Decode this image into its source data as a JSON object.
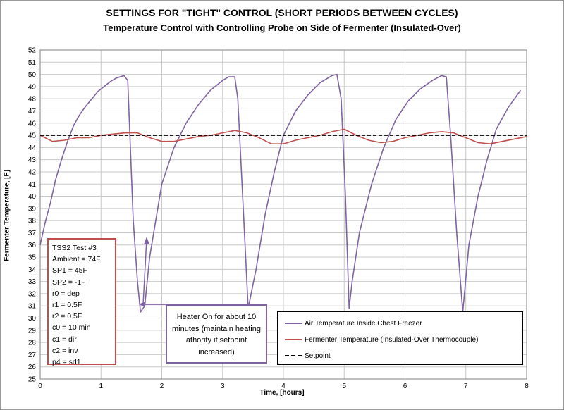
{
  "title": "SETTINGS FOR \"TIGHT\" CONTROL (SHORT PERIODS BETWEEN CYCLES)",
  "subtitle": "Temperature Control with Controlling Probe on Side of Fermenter (Insulated-Over)",
  "colors": {
    "air": "#8064a2",
    "fermenter": "#c0504d",
    "setpoint": "#000000",
    "grid": "#c8c8c8",
    "note_border": "#c0504d",
    "callout_border": "#8064a2"
  },
  "note_box": {
    "heading": "TSS2 Test #3",
    "lines": [
      "Ambient = 74F",
      "SP1 = 45F",
      "SP2 = -1F",
      "r0 = dep",
      "r1 = 0.5F",
      "r2 = 0.5F",
      "c0 = 10 min",
      "c1 = dir",
      "c2 = inv",
      "p4 = sd1"
    ]
  },
  "callout_text": "Heater On for about 10 minutes (maintain heating athority if setpoint increased)",
  "chart_data": {
    "type": "line",
    "title": "SETTINGS FOR \"TIGHT\" CONTROL (SHORT PERIODS BETWEEN CYCLES)",
    "subtitle": "Temperature Control with Controlling Probe on Side of Fermenter (Insulated-Over)",
    "xlabel": "Time, [hours]",
    "ylabel": "Fermenter Temperature, [F]",
    "xlim": [
      0,
      8
    ],
    "ylim": [
      25,
      52
    ],
    "xticks": [
      "0",
      "1",
      "2",
      "3",
      "4",
      "5",
      "6",
      "7",
      "8"
    ],
    "yticks": [
      "25",
      "26",
      "27",
      "28",
      "29",
      "30",
      "31",
      "32",
      "33",
      "34",
      "35",
      "36",
      "37",
      "38",
      "39",
      "40",
      "41",
      "42",
      "43",
      "44",
      "45",
      "46",
      "47",
      "48",
      "49",
      "50",
      "51",
      "52"
    ],
    "grid": true,
    "legend_position": "bottom-right",
    "series": [
      {
        "name": "Air Temperature Inside Chest Freezer",
        "color": "#8064a2",
        "x": [
          0.0,
          0.08,
          0.17,
          0.25,
          0.35,
          0.45,
          0.55,
          0.65,
          0.75,
          0.85,
          0.95,
          1.05,
          1.15,
          1.25,
          1.38,
          1.44,
          1.53,
          1.6,
          1.65,
          1.72,
          1.8,
          1.9,
          2.0,
          2.2,
          2.4,
          2.6,
          2.8,
          3.0,
          3.1,
          3.2,
          3.25,
          3.35,
          3.42,
          3.55,
          3.7,
          3.85,
          4.0,
          4.2,
          4.4,
          4.6,
          4.8,
          4.88,
          4.95,
          5.02,
          5.08,
          5.13,
          5.25,
          5.45,
          5.65,
          5.85,
          6.05,
          6.25,
          6.45,
          6.6,
          6.68,
          6.75,
          6.85,
          6.95,
          7.05,
          7.2,
          7.35,
          7.5,
          7.7,
          7.9
        ],
        "y": [
          36,
          37.8,
          39.5,
          41.3,
          43.0,
          44.5,
          45.8,
          46.7,
          47.4,
          48.0,
          48.6,
          49.0,
          49.4,
          49.7,
          49.9,
          49.5,
          38.0,
          33.0,
          30.5,
          31.0,
          35.0,
          38.0,
          41.0,
          44.0,
          46.0,
          47.5,
          48.7,
          49.5,
          49.8,
          49.8,
          48.0,
          38.0,
          30.8,
          34.0,
          38.5,
          42.0,
          45.0,
          47.0,
          48.3,
          49.3,
          49.9,
          50.0,
          48.0,
          40.0,
          30.8,
          33.0,
          37.0,
          41.0,
          44.0,
          46.3,
          47.8,
          48.8,
          49.5,
          49.9,
          49.8,
          45.0,
          37.0,
          30.5,
          36.0,
          40.0,
          43.0,
          45.5,
          47.3,
          48.7
        ]
      },
      {
        "name": "Fermenter Temperature (Insulated-Over Thermocouple)",
        "color": "#c0504d",
        "x": [
          0.0,
          0.2,
          0.4,
          0.6,
          0.8,
          1.0,
          1.2,
          1.4,
          1.6,
          1.8,
          2.0,
          2.2,
          2.4,
          2.6,
          2.8,
          3.0,
          3.2,
          3.4,
          3.6,
          3.8,
          4.0,
          4.2,
          4.4,
          4.6,
          4.8,
          5.0,
          5.2,
          5.4,
          5.6,
          5.8,
          6.0,
          6.2,
          6.4,
          6.6,
          6.8,
          7.0,
          7.2,
          7.4,
          7.6,
          7.8,
          8.0
        ],
        "y": [
          45.0,
          44.5,
          44.6,
          44.8,
          44.8,
          45.0,
          45.1,
          45.2,
          45.2,
          44.8,
          44.5,
          44.5,
          44.7,
          44.9,
          45.0,
          45.2,
          45.4,
          45.2,
          44.8,
          44.3,
          44.3,
          44.6,
          44.8,
          45.0,
          45.3,
          45.5,
          45.0,
          44.6,
          44.4,
          44.5,
          44.8,
          45.0,
          45.2,
          45.3,
          45.2,
          44.8,
          44.4,
          44.3,
          44.5,
          44.7,
          44.9
        ]
      },
      {
        "name": "Setpoint",
        "color": "#000000",
        "x": [
          0,
          8
        ],
        "y": [
          45,
          45
        ]
      }
    ]
  }
}
